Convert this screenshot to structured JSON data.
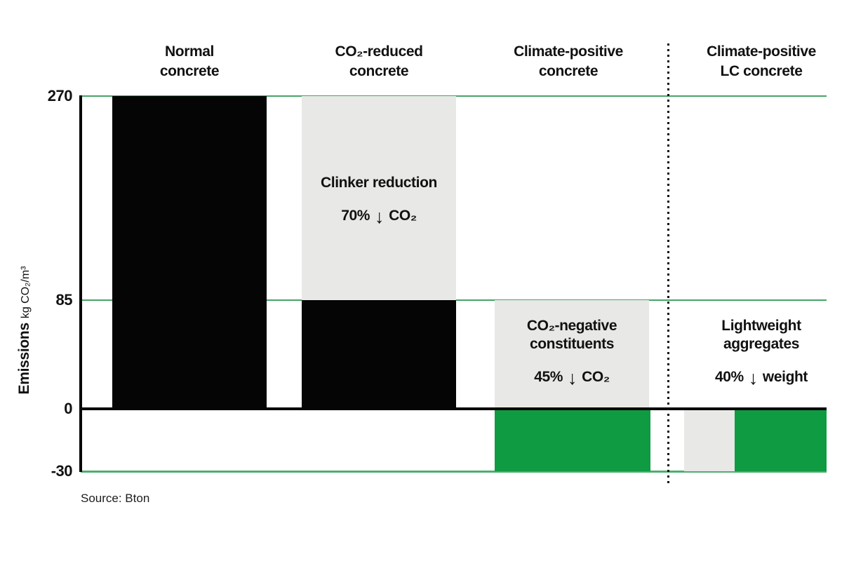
{
  "colors": {
    "bar_black": "#050505",
    "bar_gray": "#e8e8e6",
    "bar_green": "#0f9b42",
    "gridline_green": "#46a467",
    "zero_line_black": "#050505",
    "background": "#ffffff"
  },
  "y_axis": {
    "label_bold": "Emissions",
    "label_unit": "kg CO₂/m³",
    "ticks": [
      "270",
      "85",
      "0",
      "-30"
    ]
  },
  "source": "Source: Bton",
  "columns": [
    {
      "header": "Normal\nconcrete"
    },
    {
      "header": "CO₂-reduced\nconcrete",
      "annotation_title": "Clinker reduction",
      "stat_value": "70%",
      "stat_arrow": "↓",
      "stat_unit": "CO₂"
    },
    {
      "header": "Climate-positive\nconcrete",
      "annotation_title": "CO₂-negative\nconstituents",
      "stat_value": "45%",
      "stat_arrow": "↓",
      "stat_unit": "CO₂"
    },
    {
      "header": "Climate-positive\nLC concrete",
      "annotation_title": "Lightweight\naggregates",
      "stat_value": "40%",
      "stat_arrow": "↓",
      "stat_unit": "weight"
    }
  ],
  "chart_data": {
    "type": "bar",
    "title": "",
    "ylabel": "Emissions kg CO₂/m³",
    "yticks": [
      270,
      85,
      0,
      -30
    ],
    "ylim": [
      -30,
      270
    ],
    "grid": "horizontal green lines at 270, 85 and -30; solid black baseline at 0; dotted vertical divider before last category",
    "legend": "none",
    "source": "Source: Bton",
    "categories": [
      "Normal concrete",
      "CO₂-reduced concrete",
      "Climate-positive concrete",
      "Climate-positive LC concrete"
    ],
    "columns": [
      {
        "category": "Normal concrete",
        "segments": [
          {
            "from": 0,
            "to": 270,
            "color": "black",
            "meaning": "emissions"
          }
        ]
      },
      {
        "category": "CO₂-reduced concrete",
        "segments": [
          {
            "from": 0,
            "to": 85,
            "color": "black",
            "meaning": "remaining emissions"
          },
          {
            "from": 85,
            "to": 270,
            "color": "gray",
            "meaning": "avoided emissions",
            "label": "Clinker reduction 70% ↓ CO₂"
          }
        ]
      },
      {
        "category": "Climate-positive concrete",
        "segments": [
          {
            "from": 0,
            "to": 85,
            "color": "gray",
            "meaning": "avoided emissions",
            "label": "CO₂-negative constituents 45% ↓ CO₂"
          },
          {
            "from": -30,
            "to": 0,
            "color": "green",
            "meaning": "negative emissions"
          }
        ]
      },
      {
        "category": "Climate-positive LC concrete",
        "segments": [
          {
            "from": -30,
            "to": 0,
            "color": "gray",
            "meaning": "negative emissions (partial)"
          },
          {
            "from": -30,
            "to": 0,
            "color": "green",
            "meaning": "negative emissions"
          }
        ],
        "label": "Lightweight aggregates 40% ↓ weight"
      }
    ]
  }
}
